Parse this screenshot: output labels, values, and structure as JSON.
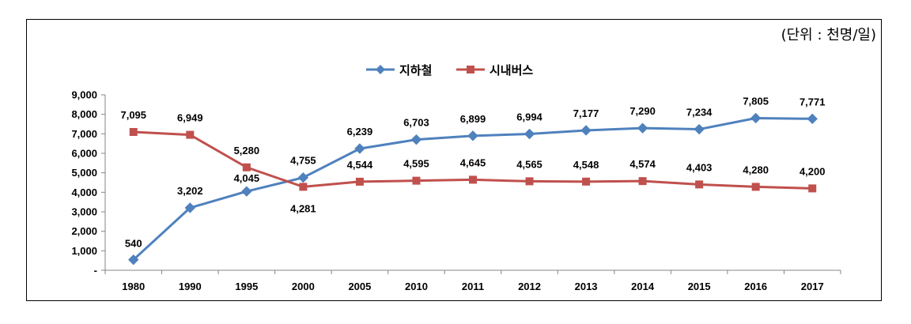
{
  "unit_label": "(단위 : 천명/일)",
  "chart_data": {
    "type": "line",
    "categories": [
      "1980",
      "1990",
      "1995",
      "2000",
      "2005",
      "2010",
      "2011",
      "2012",
      "2013",
      "2014",
      "2015",
      "2016",
      "2017"
    ],
    "ylim": [
      0,
      9000
    ],
    "yticks": [
      {
        "value": 0,
        "label": "-"
      },
      {
        "value": 1000,
        "label": "1,000"
      },
      {
        "value": 2000,
        "label": "2,000"
      },
      {
        "value": 3000,
        "label": "3,000"
      },
      {
        "value": 4000,
        "label": "4,000"
      },
      {
        "value": 5000,
        "label": "5,000"
      },
      {
        "value": 6000,
        "label": "6,000"
      },
      {
        "value": 7000,
        "label": "7,000"
      },
      {
        "value": 8000,
        "label": "8,000"
      },
      {
        "value": 9000,
        "label": "9,000"
      }
    ],
    "grid": false,
    "legend_position": "top-center",
    "series": [
      {
        "name": "지하철",
        "color": "#4F81BD",
        "marker": "diamond",
        "values": [
          540,
          3202,
          4045,
          4755,
          6239,
          6703,
          6899,
          6994,
          7177,
          7290,
          7234,
          7805,
          7771
        ],
        "labels": [
          "540",
          "3,202",
          "4,045",
          "4,755",
          "6,239",
          "6,703",
          "6,899",
          "6,994",
          "7,177",
          "7,290",
          "7,234",
          "7,805",
          "7,771"
        ]
      },
      {
        "name": "시내버스",
        "color": "#C0504D",
        "marker": "square",
        "values": [
          7095,
          6949,
          5280,
          4281,
          4544,
          4595,
          4645,
          4565,
          4548,
          4574,
          4403,
          4280,
          4200
        ],
        "labels": [
          "7,095",
          "6,949",
          "5,280",
          "4,281",
          "4,544",
          "4,595",
          "4,645",
          "4,565",
          "4,548",
          "4,574",
          "4,403",
          "4,280",
          "4,200"
        ]
      }
    ]
  }
}
